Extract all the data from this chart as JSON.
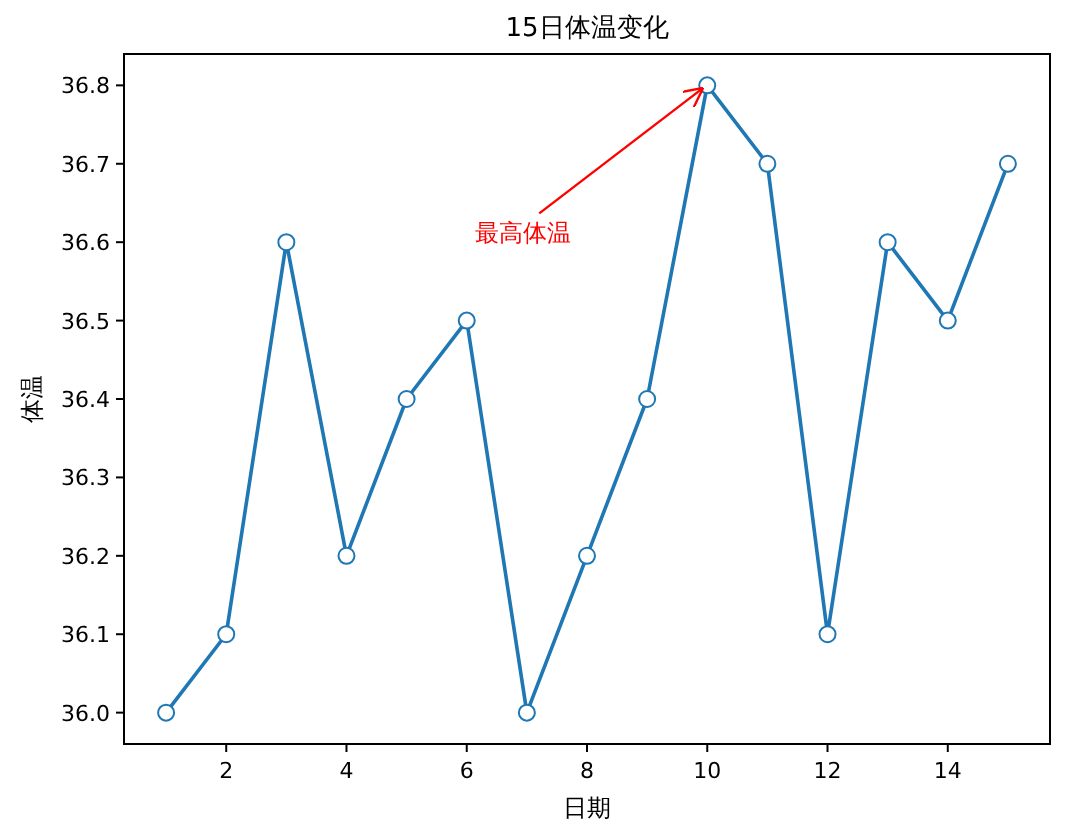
{
  "chart_data": {
    "type": "line",
    "title": "15日体温变化",
    "xlabel": "日期",
    "ylabel": "体温",
    "x": [
      1,
      2,
      3,
      4,
      5,
      6,
      7,
      8,
      9,
      10,
      11,
      12,
      13,
      14,
      15
    ],
    "series": [
      {
        "color": "#1f77b4",
        "values": [
          36.0,
          36.1,
          36.6,
          36.2,
          36.4,
          36.5,
          36.0,
          36.2,
          36.4,
          36.8,
          36.7,
          36.1,
          36.6,
          36.5,
          36.7
        ]
      }
    ],
    "xlim": [
      0.3,
      15.7
    ],
    "xticks": [
      2,
      4,
      6,
      8,
      10,
      12,
      14
    ],
    "ylim": [
      35.96,
      36.84
    ],
    "yticks": [
      {
        "value": 36.0,
        "label": "36.0"
      },
      {
        "value": 36.1,
        "label": "36.1"
      },
      {
        "value": 36.2,
        "label": "36.2"
      },
      {
        "value": 36.3,
        "label": "36.3"
      },
      {
        "value": 36.4,
        "label": "36.4"
      },
      {
        "value": 36.5,
        "label": "36.5"
      },
      {
        "value": 36.6,
        "label": "36.6"
      },
      {
        "value": 36.7,
        "label": "36.7"
      },
      {
        "value": 36.8,
        "label": "36.8"
      }
    ],
    "marker": "circle",
    "line_style": "solid",
    "annotations": [
      {
        "text": "最高体温",
        "x": 10,
        "y": 36.8
      }
    ]
  }
}
